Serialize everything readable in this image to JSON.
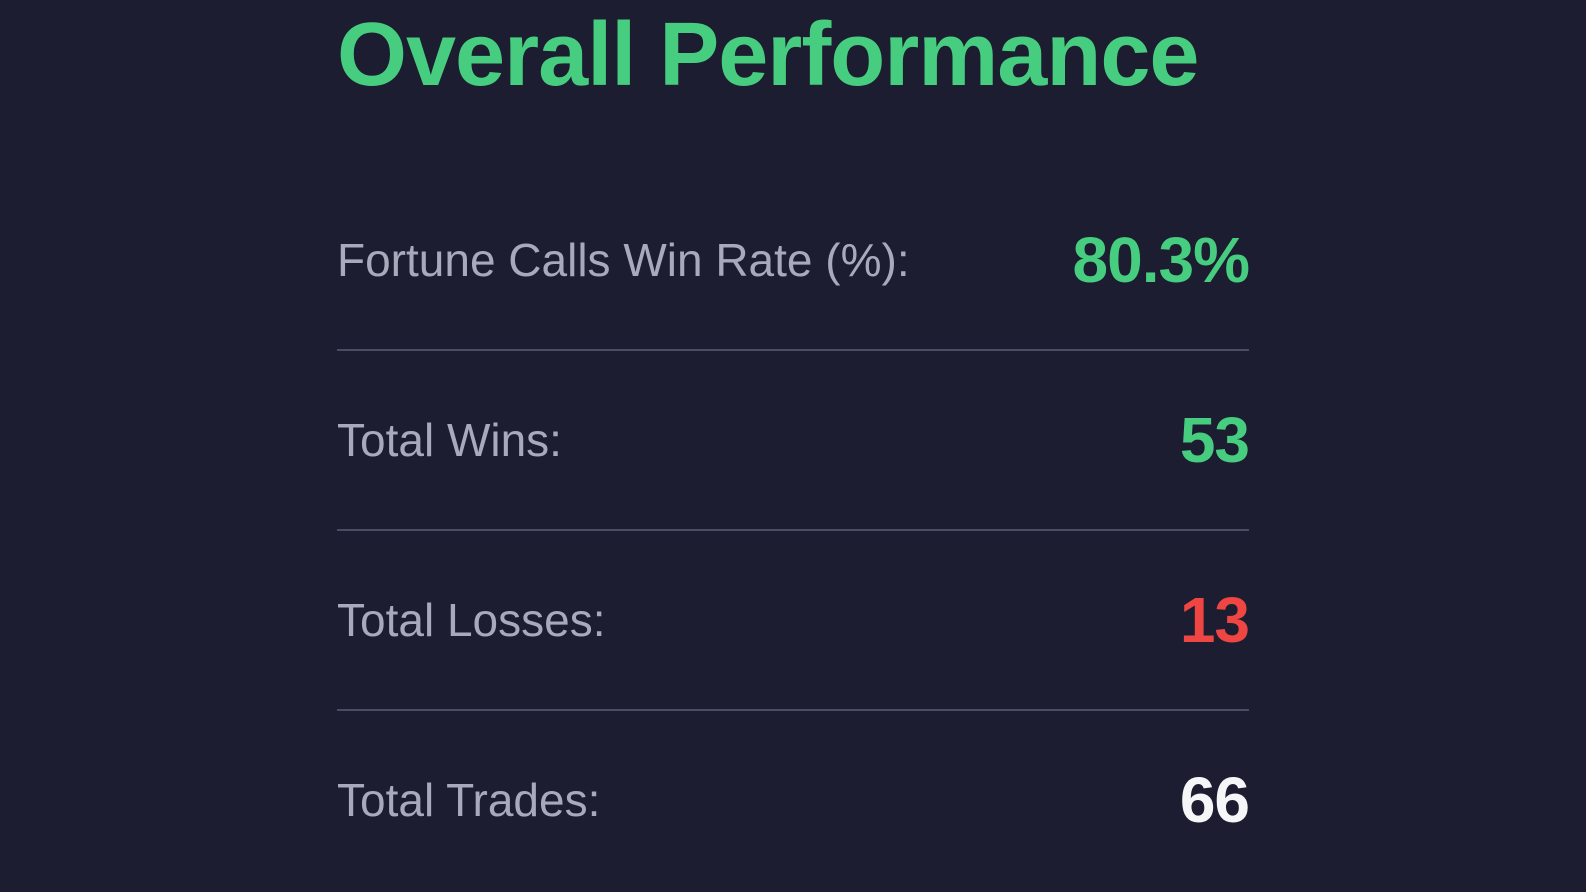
{
  "panel": {
    "title": "Overall Performance",
    "stats": [
      {
        "label": "Fortune Calls Win Rate (%):",
        "value": "80.3%",
        "color": "green"
      },
      {
        "label": "Total Wins:",
        "value": "53",
        "color": "green"
      },
      {
        "label": "Total Losses:",
        "value": "13",
        "color": "red"
      },
      {
        "label": "Total Trades:",
        "value": "66",
        "color": "white"
      }
    ]
  },
  "colors": {
    "background": "#1c1d30",
    "accent_green": "#47cd7f",
    "accent_red": "#ef4644",
    "value_white": "#f5f6f8",
    "label_grey": "#a6aaba",
    "divider": "rgba(160, 166, 190, 0.35)"
  }
}
